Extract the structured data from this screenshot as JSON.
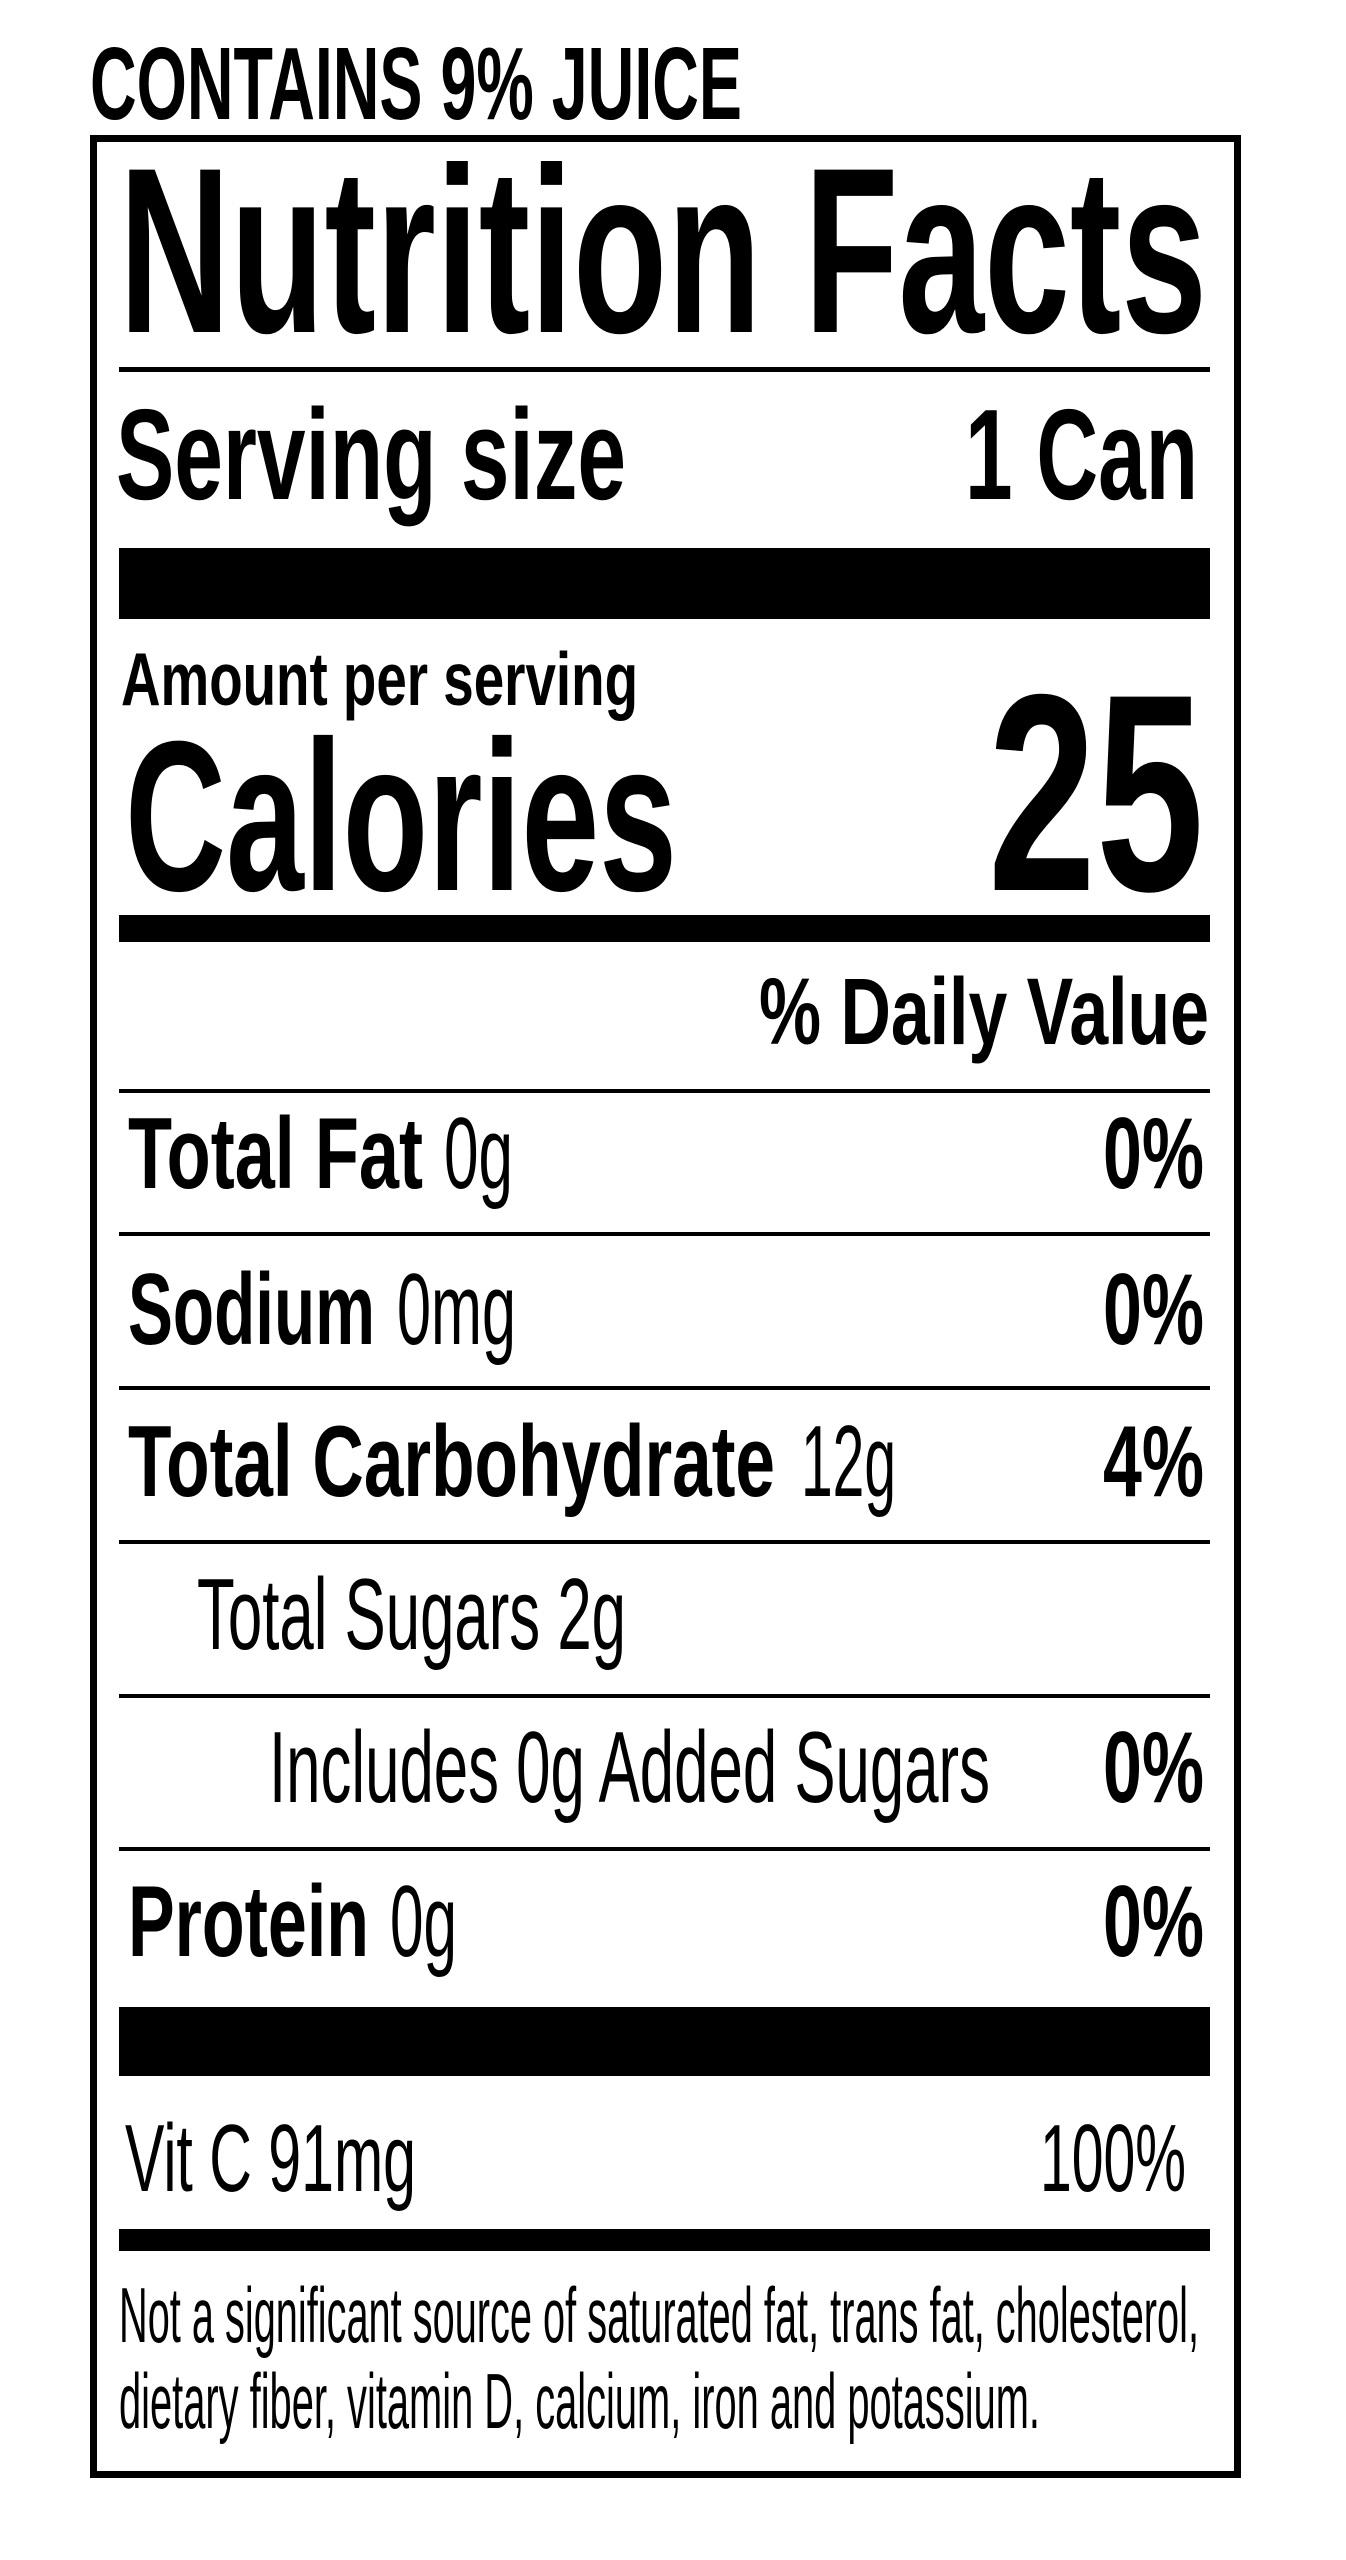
{
  "juice_statement": "CONTAINS 9% JUICE",
  "title": "Nutrition Facts",
  "serving": {
    "label": "Serving size",
    "value": "1 Can"
  },
  "amount_per_serving": "Amount per serving",
  "calories": {
    "label": "Calories",
    "value": "25"
  },
  "daily_value_header": "% Daily Value",
  "nutrients": [
    {
      "name": "Total Fat",
      "amount": "0g",
      "dv": "0%"
    },
    {
      "name": "Sodium",
      "amount": "0mg",
      "dv": "0%"
    },
    {
      "name": "Total Carbohydrate",
      "amount": "12g",
      "dv": "4%"
    },
    {
      "name": "Total Sugars 2g",
      "amount": "",
      "dv": ""
    },
    {
      "name": "Includes 0g Added Sugars",
      "amount": "",
      "dv": "0%"
    },
    {
      "name": "Protein",
      "amount": "0g",
      "dv": "0%"
    }
  ],
  "vitamins": [
    {
      "name": "Vit C 91mg",
      "dv": "100%"
    }
  ],
  "footnote": [
    "Not a significant source of saturated fat, trans fat, cholesterol,",
    "dietary fiber, vitamin D, calcium, iron and potassium."
  ]
}
